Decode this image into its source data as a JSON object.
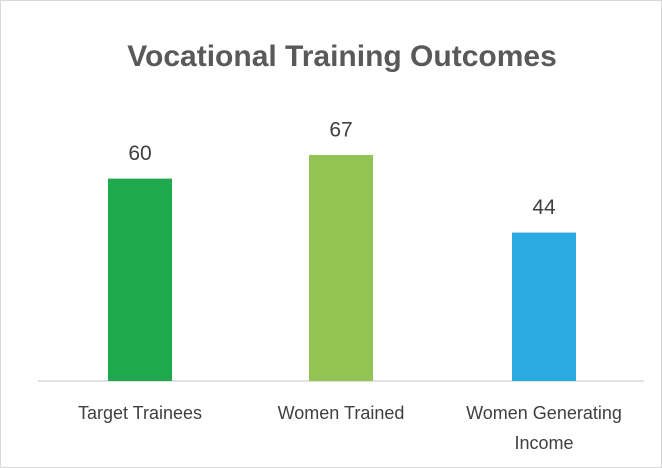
{
  "chart_data": {
    "type": "bar",
    "title": "Vocational Training Outcomes",
    "categories": [
      "Target Trainees",
      "Women Trained",
      "Women Generating Income"
    ],
    "values": [
      60,
      67,
      44
    ],
    "colors": [
      "#1fa84d",
      "#92c353",
      "#29abe2"
    ]
  }
}
